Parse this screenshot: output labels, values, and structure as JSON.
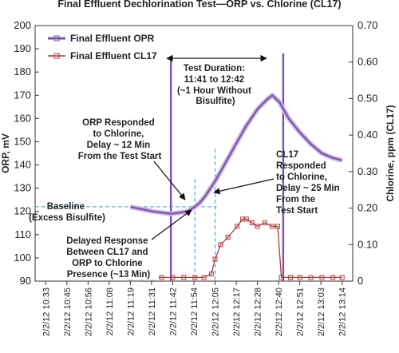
{
  "chart_data": {
    "type": "line",
    "title": "Final Effluent Dechlorination Test—ORP vs. Chlorine (CL17)",
    "ylabel": "ORP, mV",
    "y2label": "Chlorine, ppm (CL17)",
    "ylim": [
      90,
      200
    ],
    "y2lim": [
      0,
      0.7
    ],
    "yticks": [
      "90",
      "100",
      "110",
      "120",
      "130",
      "140",
      "150",
      "160",
      "170",
      "180",
      "190",
      "200"
    ],
    "y2ticks": [
      "0",
      "0.10",
      "0.20",
      "0.30",
      "0.40",
      "0.50",
      "0.60",
      "0.70"
    ],
    "x_tick_labels": [
      "2/2/12 10:33",
      "2/2/12 10:45",
      "2/2/12 10:56",
      "2/2/12 11:08",
      "2/2/12 11:19",
      "2/2/12 11:31",
      "2/2/12 11:42",
      "2/2/12 11:54",
      "2/2/12 12:05",
      "2/2/12 12:17",
      "2/2/12 12:28",
      "2/2/12 12:40",
      "2/2/12 12:51",
      "2/2/12 13:03",
      "2/2/12 13:14"
    ],
    "grid": false,
    "legend_position": "top-left",
    "series": [
      {
        "name": "Final Effluent OPR",
        "axis": "left",
        "color": "#7b52ab",
        "x": [
          "11:19",
          "11:25",
          "11:31",
          "11:36",
          "11:41",
          "11:46",
          "11:50",
          "11:54",
          "11:57",
          "12:00",
          "12:05",
          "12:10",
          "12:17",
          "12:22",
          "12:28",
          "12:33",
          "12:36",
          "12:40",
          "12:45",
          "12:51",
          "12:57",
          "13:03",
          "13:09",
          "13:14"
        ],
        "values": [
          122,
          121,
          120,
          119.5,
          119,
          119.5,
          120,
          122,
          124,
          127,
          133,
          140,
          150,
          157,
          164,
          168,
          170,
          167,
          160,
          154,
          149,
          145,
          143,
          142
        ]
      },
      {
        "name": "Final Effluent CL17",
        "axis": "right",
        "color": "#b03a3a",
        "x": [
          "11:19",
          "11:25",
          "11:31",
          "11:36",
          "11:42",
          "11:48",
          "11:54",
          "11:59",
          "12:03",
          "12:05",
          "12:08",
          "12:12",
          "12:17",
          "12:20",
          "12:22",
          "12:25",
          "12:28",
          "12:32",
          "12:36",
          "12:39",
          "12:41",
          "12:46",
          "12:51",
          "12:57",
          "13:03",
          "13:09",
          "13:14"
        ],
        "values": [
          0.01,
          0.01,
          0.01,
          0.01,
          0.01,
          0.01,
          0.01,
          0.01,
          0.02,
          0.06,
          0.1,
          0.12,
          0.15,
          0.17,
          0.17,
          0.16,
          0.15,
          0.16,
          0.15,
          0.15,
          0.01,
          0.01,
          0.01,
          0.01,
          0.01,
          0.01,
          0.01
        ]
      }
    ],
    "test_duration": {
      "start": "11:41",
      "end": "12:42",
      "label_lines": [
        "Test Duration:",
        "11:41 to 12:42",
        "(~1 Hour Without",
        "Bisulfite)"
      ]
    },
    "reference_lines": {
      "orp_baseline": 122,
      "orp_response_time": "11:54",
      "cl17_response_time": "12:05"
    },
    "annotations": {
      "baseline": [
        "Baseline",
        "(Excess Bisulfite)"
      ],
      "orp_response": [
        "ORP Responded",
        "to Chlorine,",
        "Delay ~ 12 Min",
        "From the Test Start"
      ],
      "cl17_response": [
        "CL17",
        "Responded",
        "to Chlorine,",
        "Delay ~ 25 Min",
        "From the",
        "Test Start"
      ],
      "delayed_response": [
        "Delayed Response",
        "Between CL17 and",
        "ORP to Chlorine",
        "Presence (~13 Min)"
      ]
    }
  }
}
